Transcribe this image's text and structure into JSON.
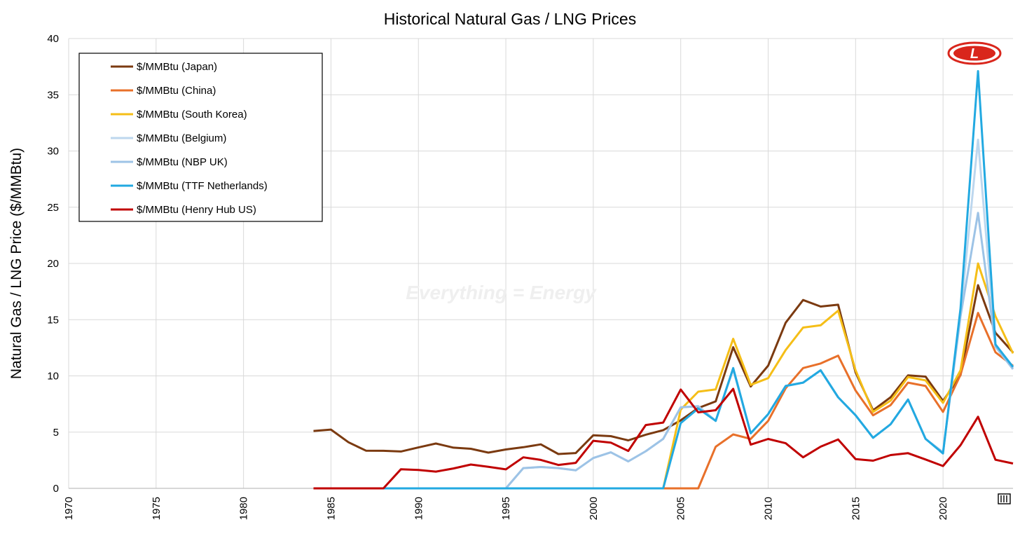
{
  "chart_data": {
    "type": "line",
    "title": "Historical Natural Gas / LNG Prices",
    "ylabel": "Natural Gas / LNG Price ($/MMBtu)",
    "xlabel": "",
    "watermark": "Everything = Energy",
    "logo_letter": "L",
    "xlim": [
      1970,
      2024
    ],
    "ylim": [
      0,
      40
    ],
    "x_ticks": [
      1970,
      1975,
      1980,
      1985,
      1990,
      1995,
      2000,
      2005,
      2010,
      2015,
      2020
    ],
    "y_ticks": [
      0,
      5,
      10,
      15,
      20,
      25,
      30,
      35,
      40
    ],
    "grid": true,
    "legend_position": "top-left",
    "series": [
      {
        "name": "$/MMBtu (Japan)",
        "color": "#7B3A10",
        "x": [
          1984,
          1985,
          1986,
          1987,
          1988,
          1989,
          1990,
          1991,
          1992,
          1993,
          1994,
          1995,
          1996,
          1997,
          1998,
          1999,
          2000,
          2001,
          2002,
          2003,
          2004,
          2005,
          2006,
          2007,
          2008,
          2009,
          2010,
          2011,
          2012,
          2013,
          2014,
          2015,
          2016,
          2017,
          2018,
          2019,
          2020,
          2021,
          2022,
          2023,
          2024
        ],
        "y": [
          5.1,
          5.23,
          4.1,
          3.35,
          3.34,
          3.28,
          3.64,
          3.99,
          3.62,
          3.52,
          3.18,
          3.46,
          3.66,
          3.91,
          3.05,
          3.14,
          4.72,
          4.64,
          4.27,
          4.77,
          5.18,
          6.05,
          7.14,
          7.73,
          12.55,
          9.06,
          10.91,
          14.73,
          16.75,
          16.17,
          16.33,
          10.31,
          6.94,
          8.1,
          10.05,
          9.94,
          7.77,
          10.07,
          18.07,
          13.83,
          12.09
        ]
      },
      {
        "name": "$/MMBtu (China)",
        "color": "#E8702A",
        "x": [
          1984,
          1985,
          1986,
          1987,
          1988,
          1989,
          1990,
          1991,
          1992,
          1993,
          1994,
          1995,
          1996,
          1997,
          1998,
          1999,
          2000,
          2001,
          2002,
          2003,
          2004,
          2005,
          2006,
          2007,
          2008,
          2009,
          2010,
          2011,
          2012,
          2013,
          2014,
          2015,
          2016,
          2017,
          2018,
          2019,
          2020,
          2021,
          2022,
          2023,
          2024
        ],
        "y": [
          0,
          0,
          0,
          0,
          0,
          0,
          0,
          0,
          0,
          0,
          0,
          0,
          0,
          0,
          0,
          0,
          0,
          0,
          0,
          0,
          0,
          0,
          0,
          3.7,
          4.8,
          4.4,
          6,
          8.9,
          10.7,
          11.1,
          11.8,
          8.7,
          6.5,
          7.4,
          9.4,
          9.1,
          6.8,
          10.1,
          15.6,
          12.1,
          10.9
        ]
      },
      {
        "name": "$/MMBtu (South Korea)",
        "color": "#F5BE17",
        "x": [
          1984,
          1985,
          1986,
          1987,
          1988,
          1989,
          1990,
          1991,
          1992,
          1993,
          1994,
          1995,
          1996,
          1997,
          1998,
          1999,
          2000,
          2001,
          2002,
          2003,
          2004,
          2005,
          2006,
          2007,
          2008,
          2009,
          2010,
          2011,
          2012,
          2013,
          2014,
          2015,
          2016,
          2017,
          2018,
          2019,
          2020,
          2021,
          2022,
          2023,
          2024
        ],
        "y": [
          0,
          0,
          0,
          0,
          0,
          0,
          0,
          0,
          0,
          0,
          0,
          0,
          0,
          0,
          0,
          0,
          0,
          0,
          0,
          0,
          0,
          7,
          8.6,
          8.8,
          13.3,
          9.2,
          9.8,
          12.3,
          14.3,
          14.5,
          15.8,
          10.5,
          6.8,
          7.8,
          9.9,
          9.6,
          7.6,
          10.5,
          20,
          15.3,
          12
        ]
      },
      {
        "name": "$/MMBtu (Belgium)",
        "color": "#BDD7EE",
        "x": [
          1984,
          1985,
          1986,
          1987,
          1988,
          1989,
          1990,
          1991,
          1992,
          1993,
          1994,
          1995,
          1996,
          1997,
          1998,
          1999,
          2000,
          2001,
          2002,
          2003,
          2004,
          2005,
          2006,
          2007,
          2008,
          2009,
          2010,
          2011,
          2012,
          2013,
          2014,
          2015,
          2016,
          2017,
          2018,
          2019,
          2020,
          2021,
          2022,
          2023,
          2024
        ],
        "y": [
          0,
          0,
          0,
          0,
          0,
          0,
          0,
          0,
          0,
          0,
          0,
          0,
          1.8,
          1.9,
          1.8,
          1.6,
          2.7,
          3.2,
          2.4,
          3.3,
          4.4,
          7.2,
          7.3,
          6,
          10.6,
          4.9,
          6.6,
          9.1,
          9.4,
          10.5,
          8.1,
          6.5,
          4.5,
          5.7,
          7.9,
          4.4,
          3.2,
          15.5,
          31,
          12.6,
          10.7
        ]
      },
      {
        "name": "$/MMBtu (NBP UK)",
        "color": "#9DC3E6",
        "x": [
          1984,
          1985,
          1986,
          1987,
          1988,
          1989,
          1990,
          1991,
          1992,
          1993,
          1994,
          1995,
          1996,
          1997,
          1998,
          1999,
          2000,
          2001,
          2002,
          2003,
          2004,
          2005,
          2006,
          2007,
          2008,
          2009,
          2010,
          2011,
          2012,
          2013,
          2014,
          2015,
          2016,
          2017,
          2018,
          2019,
          2020,
          2021,
          2022,
          2023,
          2024
        ],
        "y": [
          0,
          0,
          0,
          0,
          0,
          0,
          0,
          0,
          0,
          0,
          0,
          0,
          1.8,
          1.9,
          1.8,
          1.6,
          2.7,
          3.2,
          2.4,
          3.3,
          4.4,
          7.2,
          7.3,
          6,
          10.6,
          4.9,
          6.6,
          9.1,
          9.4,
          10.5,
          8.1,
          6.5,
          4.5,
          5.7,
          7.9,
          4.4,
          3.2,
          15.3,
          24.5,
          12.6,
          10.6
        ]
      },
      {
        "name": "$/MMBtu (TTF Netherlands)",
        "color": "#22A9E1",
        "x": [
          1984,
          1985,
          1986,
          1987,
          1988,
          1989,
          1990,
          1991,
          1992,
          1993,
          1994,
          1995,
          1996,
          1997,
          1998,
          1999,
          2000,
          2001,
          2002,
          2003,
          2004,
          2005,
          2006,
          2007,
          2008,
          2009,
          2010,
          2011,
          2012,
          2013,
          2014,
          2015,
          2016,
          2017,
          2018,
          2019,
          2020,
          2021,
          2022,
          2023,
          2024
        ],
        "y": [
          0,
          0,
          0,
          0,
          0,
          0,
          0,
          0,
          0,
          0,
          0,
          0,
          0,
          0,
          0,
          0,
          0,
          0,
          0,
          0,
          0,
          5.8,
          7.1,
          6,
          10.7,
          4.9,
          6.6,
          9.1,
          9.4,
          10.5,
          8.1,
          6.5,
          4.5,
          5.7,
          7.9,
          4.4,
          3.1,
          16,
          37.1,
          12.8,
          10.8
        ]
      },
      {
        "name": "$/MMBtu (Henry Hub US)",
        "color": "#C00000",
        "x": [
          1984,
          1985,
          1986,
          1987,
          1988,
          1989,
          1990,
          1991,
          1992,
          1993,
          1994,
          1995,
          1996,
          1997,
          1998,
          1999,
          2000,
          2001,
          2002,
          2003,
          2004,
          2005,
          2006,
          2007,
          2008,
          2009,
          2010,
          2011,
          2012,
          2013,
          2014,
          2015,
          2016,
          2017,
          2018,
          2019,
          2020,
          2021,
          2022,
          2023,
          2024
        ],
        "y": [
          0,
          0,
          0,
          0,
          0,
          1.7,
          1.64,
          1.49,
          1.77,
          2.12,
          1.92,
          1.69,
          2.76,
          2.53,
          2.08,
          2.27,
          4.23,
          4.07,
          3.33,
          5.63,
          5.85,
          8.79,
          6.76,
          6.95,
          8.85,
          3.89,
          4.39,
          4.01,
          2.76,
          3.71,
          4.35,
          2.6,
          2.46,
          2.96,
          3.13,
          2.57,
          1.99,
          3.84,
          6.37,
          2.54,
          2.21
        ]
      }
    ]
  }
}
